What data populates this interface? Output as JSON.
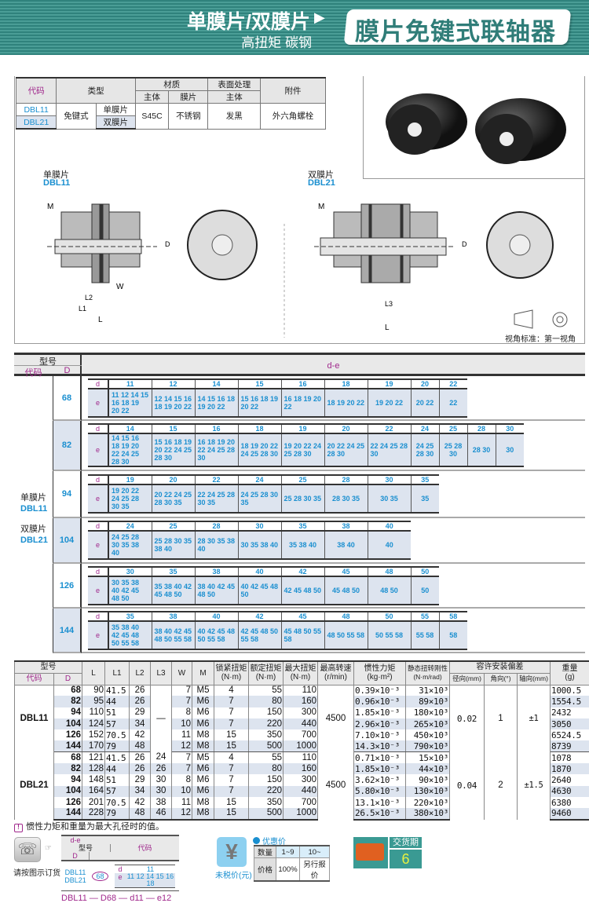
{
  "header": {
    "series": "单膜片/双膜片",
    "subtitle": "高扭矩 碳钢",
    "title": "膜片免键式联轴器"
  },
  "spec_table": {
    "headers": {
      "code": "代码",
      "type": "类型",
      "material": "材质",
      "surface": "表面处理",
      "accessory": "附件",
      "body": "主体",
      "diaphragm": "膜片",
      "surface_body": "主体"
    },
    "rows": [
      {
        "code": "DBL11",
        "type": "免键式",
        "subtype": "单膜片"
      },
      {
        "code": "DBL21",
        "subtype": "双膜片"
      }
    ],
    "body_material": "S45C",
    "diaphragm_material": "不锈钢",
    "surface": "发黑",
    "accessory": "外六角螺栓"
  },
  "drawings": {
    "single": {
      "label": "单膜片",
      "code": "DBL11"
    },
    "double": {
      "label": "双膜片",
      "code": "DBL21"
    },
    "dims": {
      "M": "M",
      "d": "dH8",
      "e": "eH8",
      "D": "D",
      "W": "W",
      "L": "L",
      "L1": "L1",
      "L2": "L2",
      "L3": "L3"
    },
    "view_standard": "视角标准：第一视角"
  },
  "de_table": {
    "model": "型号",
    "code": "代码",
    "D": "D",
    "de": "d-e",
    "d": "d",
    "e": "e",
    "series_labels": [
      "单膜片",
      "DBL11",
      "双膜片",
      "DBL21"
    ],
    "groups": [
      {
        "D": "68",
        "columns": [
          {
            "d": "11",
            "e": "11 12 14 15 16 18 19 20 22"
          },
          {
            "d": "12",
            "e": "12 14 15 16 18 19 20 22"
          },
          {
            "d": "14",
            "e": "14 15 16 18 19 20 22"
          },
          {
            "d": "15",
            "e": "15 16 18 19 20 22"
          },
          {
            "d": "16",
            "e": "16 18 19 20 22"
          },
          {
            "d": "18",
            "e": "18 19 20 22"
          },
          {
            "d": "19",
            "e": "19 20 22"
          },
          {
            "d": "20",
            "e": "20 22"
          },
          {
            "d": "22",
            "e": "22"
          }
        ]
      },
      {
        "D": "82",
        "columns": [
          {
            "d": "14",
            "e": "14 15 16 18 19 20 22 24 25 28 30"
          },
          {
            "d": "15",
            "e": "15 16 18 19 20 22 24 25 28 30"
          },
          {
            "d": "16",
            "e": "16 18 19 20 22 24 25 28 30"
          },
          {
            "d": "18",
            "e": "18 19 20 22 24 25 28 30"
          },
          {
            "d": "19",
            "e": "19 20 22 24 25 28 30"
          },
          {
            "d": "20",
            "e": "20 22 24 25 28 30"
          },
          {
            "d": "22",
            "e": "22 24 25 28 30"
          },
          {
            "d": "24",
            "e": "24 25 28 30"
          },
          {
            "d": "25",
            "e": "25 28 30"
          },
          {
            "d": "28",
            "e": "28 30"
          },
          {
            "d": "30",
            "e": "30"
          }
        ]
      },
      {
        "D": "94",
        "columns": [
          {
            "d": "19",
            "e": "19 20 22 24 25 28 30 35"
          },
          {
            "d": "20",
            "e": "20 22 24 25 28 30 35"
          },
          {
            "d": "22",
            "e": "22 24 25 28 30 35"
          },
          {
            "d": "24",
            "e": "24 25 28 30 35"
          },
          {
            "d": "25",
            "e": "25 28 30 35"
          },
          {
            "d": "28",
            "e": "28 30 35"
          },
          {
            "d": "30",
            "e": "30 35"
          },
          {
            "d": "35",
            "e": "35"
          }
        ]
      },
      {
        "D": "104",
        "columns": [
          {
            "d": "24",
            "e": "24 25 28 30 35 38 40"
          },
          {
            "d": "25",
            "e": "25 28 30 35 38 40"
          },
          {
            "d": "28",
            "e": "28 30 35 38 40"
          },
          {
            "d": "30",
            "e": "30 35 38 40"
          },
          {
            "d": "35",
            "e": "35 38 40"
          },
          {
            "d": "38",
            "e": "38 40"
          },
          {
            "d": "40",
            "e": "40"
          }
        ]
      },
      {
        "D": "126",
        "columns": [
          {
            "d": "30",
            "e": "30 35 38 40 42 45 48 50"
          },
          {
            "d": "35",
            "e": "35 38 40 42 45 48 50"
          },
          {
            "d": "38",
            "e": "38 40 42 45 48 50"
          },
          {
            "d": "40",
            "e": "40 42 45 48 50"
          },
          {
            "d": "42",
            "e": "42 45 48 50"
          },
          {
            "d": "45",
            "e": "45 48 50"
          },
          {
            "d": "48",
            "e": "48 50"
          },
          {
            "d": "50",
            "e": "50"
          }
        ]
      },
      {
        "D": "144",
        "columns": [
          {
            "d": "35",
            "e": "35 38 40 42 45 48 50 55 58"
          },
          {
            "d": "38",
            "e": "38 40 42 45 48 50 55 58"
          },
          {
            "d": "40",
            "e": "40 42 45 48 50 55 58"
          },
          {
            "d": "42",
            "e": "42 45 48 50 55 58"
          },
          {
            "d": "45",
            "e": "45 48 50 55 58"
          },
          {
            "d": "48",
            "e": "48 50 55 58"
          },
          {
            "d": "50",
            "e": "50 55 58"
          },
          {
            "d": "55",
            "e": "55 58"
          },
          {
            "d": "58",
            "e": "58"
          }
        ]
      }
    ]
  },
  "spec_table2": {
    "headers": {
      "model": "型号",
      "code": "代码",
      "D": "D",
      "L": "L",
      "L1": "L1",
      "L2": "L2",
      "L3": "L3",
      "W": "W",
      "M": "M",
      "lock": "锁紧扭矩",
      "rated": "额定扭矩",
      "max": "最大扭矩",
      "nm": "(N·m)",
      "speed": "最高转速",
      "rpm": "(r/min)",
      "inertia": "惯性力矩",
      "kgm2": "(kg·m²)",
      "stiff": "静态扭转刚性",
      "nmrad": "(N·m/rad)",
      "tol": "容许安装偏差",
      "radial": "径向(mm)",
      "angular": "角向(°)",
      "axial": "轴向(mm)",
      "weight": "重量",
      "g": "(g)"
    },
    "groups": [
      {
        "code": "DBL11",
        "L3": "—",
        "speed": "4500",
        "radial": "0.02",
        "angular": "1",
        "axial": "±1",
        "rows": [
          {
            "D": "68",
            "L": "90",
            "L1": "41.5",
            "L2": "26",
            "W": "7",
            "M": "M5",
            "lock": "4",
            "rated": "55",
            "max": "110",
            "inertia": "0.39×10⁻³",
            "stiff": "31×10³",
            "weight": "1000.5"
          },
          {
            "D": "82",
            "L": "95",
            "L1": "44",
            "L2": "26",
            "W": "7",
            "M": "M6",
            "lock": "7",
            "rated": "80",
            "max": "160",
            "inertia": "0.96×10⁻³",
            "stiff": "89×10³",
            "weight": "1554.5"
          },
          {
            "D": "94",
            "L": "110",
            "L1": "51",
            "L2": "29",
            "W": "8",
            "M": "M6",
            "lock": "7",
            "rated": "150",
            "max": "300",
            "inertia": "1.85×10⁻³",
            "stiff": "180×10³",
            "weight": "2432"
          },
          {
            "D": "104",
            "L": "124",
            "L1": "57",
            "L2": "34",
            "W": "10",
            "M": "M6",
            "lock": "7",
            "rated": "220",
            "max": "440",
            "inertia": "2.96×10⁻³",
            "stiff": "265×10³",
            "weight": "3050"
          },
          {
            "D": "126",
            "L": "152",
            "L1": "70.5",
            "L2": "42",
            "W": "11",
            "M": "M8",
            "lock": "15",
            "rated": "350",
            "max": "700",
            "inertia": "7.10×10⁻³",
            "stiff": "450×10³",
            "weight": "6524.5"
          },
          {
            "D": "144",
            "L": "170",
            "L1": "79",
            "L2": "48",
            "W": "12",
            "M": "M8",
            "lock": "15",
            "rated": "500",
            "max": "1000",
            "inertia": "14.3×10⁻³",
            "stiff": "790×10³",
            "weight": "8739"
          }
        ]
      },
      {
        "code": "DBL21",
        "speed": "4500",
        "radial": "0.04",
        "angular": "2",
        "axial": "±1.5",
        "rows": [
          {
            "D": "68",
            "L": "121",
            "L1": "41.5",
            "L2": "26",
            "L3": "24",
            "W": "7",
            "M": "M5",
            "lock": "4",
            "rated": "55",
            "max": "110",
            "inertia": "0.71×10⁻³",
            "stiff": "15×10³",
            "weight": "1078"
          },
          {
            "D": "82",
            "L": "128",
            "L1": "44",
            "L2": "26",
            "L3": "26",
            "W": "7",
            "M": "M6",
            "lock": "7",
            "rated": "80",
            "max": "160",
            "inertia": "1.85×10⁻³",
            "stiff": "44×10³",
            "weight": "1870"
          },
          {
            "D": "94",
            "L": "148",
            "L1": "51",
            "L2": "29",
            "L3": "30",
            "W": "8",
            "M": "M6",
            "lock": "7",
            "rated": "150",
            "max": "300",
            "inertia": "3.62×10⁻³",
            "stiff": "90×10³",
            "weight": "2640"
          },
          {
            "D": "104",
            "L": "164",
            "L1": "57",
            "L2": "34",
            "L3": "30",
            "W": "10",
            "M": "M6",
            "lock": "7",
            "rated": "220",
            "max": "440",
            "inertia": "5.80×10⁻³",
            "stiff": "130×10³",
            "weight": "4630"
          },
          {
            "D": "126",
            "L": "201",
            "L1": "70.5",
            "L2": "42",
            "L3": "38",
            "W": "11",
            "M": "M8",
            "lock": "15",
            "rated": "350",
            "max": "700",
            "inertia": "13.1×10⁻³",
            "stiff": "220×10³",
            "weight": "6380"
          },
          {
            "D": "144",
            "L": "228",
            "L1": "79",
            "L2": "48",
            "L3": "46",
            "W": "12",
            "M": "M8",
            "lock": "15",
            "rated": "500",
            "max": "1000",
            "inertia": "26.5×10⁻³",
            "stiff": "380×10³",
            "weight": "9460"
          }
        ]
      }
    ]
  },
  "note": "惯性力矩和重量为最大孔径时的值。",
  "order": {
    "label": "请按图示订货",
    "model": "型号",
    "code": "代码",
    "D": "D",
    "de": "d-e",
    "codes": [
      "DBL11",
      "DBL21"
    ],
    "D_value": "68",
    "d": "d",
    "e": "e",
    "d_value": "11",
    "e_values": "11 12 14 15 16 18",
    "example": "DBL11 — D68 — d11 — e12"
  },
  "price": {
    "label": "未税价(元)",
    "discount": "优惠价",
    "qty_label": "数量",
    "qty": [
      "1~9",
      "10~"
    ],
    "price_label": "价格",
    "prices": [
      "100%",
      "另行报价"
    ]
  },
  "delivery": {
    "label": "交货期",
    "days": "6"
  },
  "colors": {
    "teal": "#2f827c",
    "blue": "#1a8fd0",
    "purple": "#a0288c",
    "row_tint": "#dde4ef"
  }
}
